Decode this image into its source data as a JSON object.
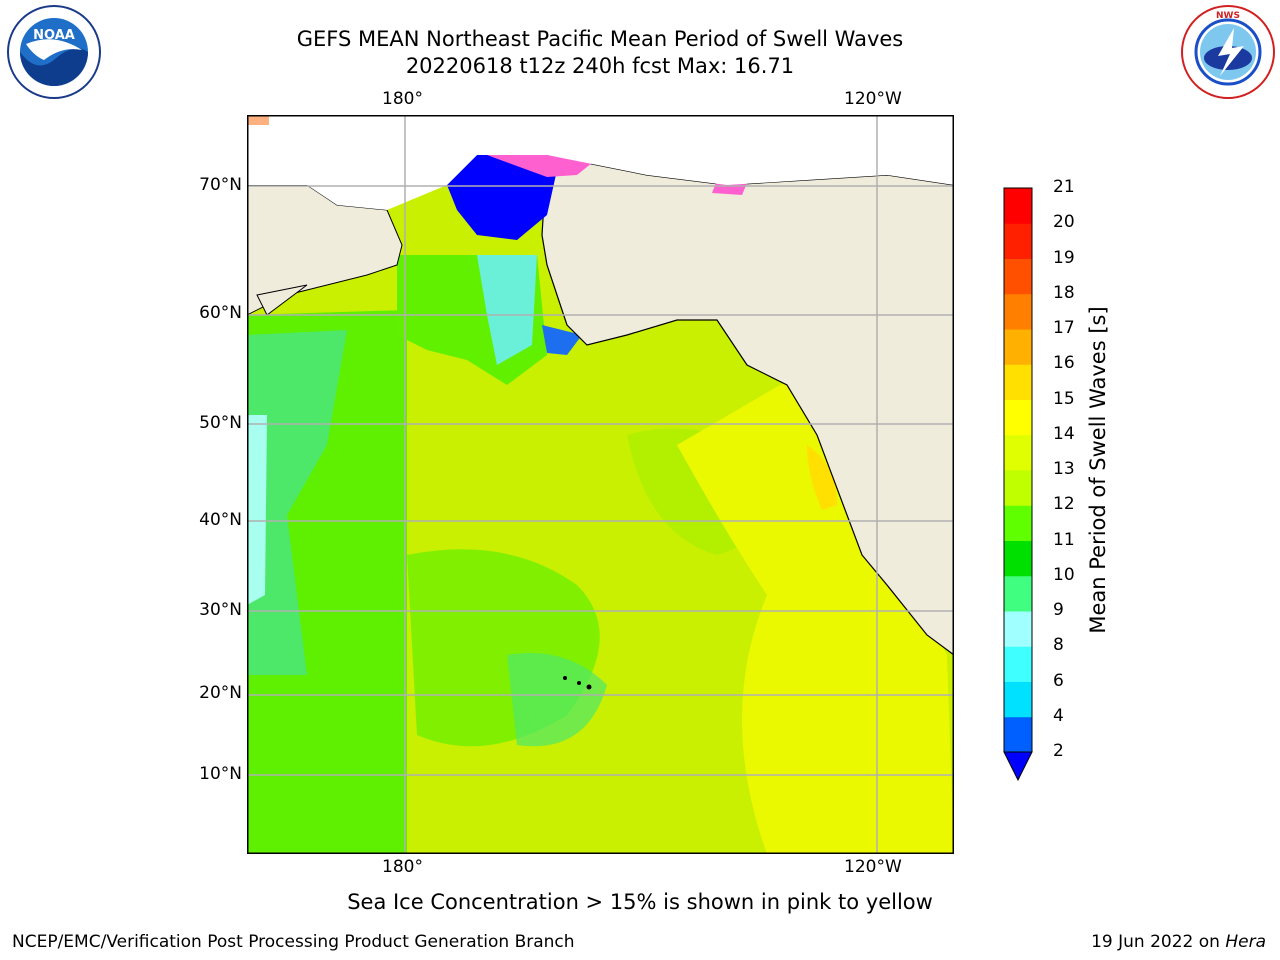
{
  "header": {
    "title_line1": "GEFS MEAN Northeast Pacific Mean Period of Swell Waves",
    "title_line2": "20220618 t12z 240h fcst   Max: 16.71"
  },
  "logos": {
    "noaa": {
      "name": "noaa-logo",
      "text": "NOAA",
      "ring_text": "NATIONAL OCEANIC AND ATMOSPHERIC ADMINISTRATION · U.S. DEPARTMENT OF COMMERCE"
    },
    "nws": {
      "name": "nws-logo",
      "ring_text": "NATIONAL WEATHER SERVICE"
    }
  },
  "map": {
    "lon_labels": {
      "left": "180°",
      "right": "120°W"
    },
    "lat_labels": [
      "70°N",
      "60°N",
      "50°N",
      "40°N",
      "30°N",
      "20°N",
      "10°N"
    ],
    "colors": {
      "land": "#efecdc",
      "grid": "#b0b0b0"
    }
  },
  "colorbar": {
    "title": "Mean Period of Swell Waves [s]",
    "ticks": [
      "2",
      "4",
      "6",
      "8",
      "9",
      "10",
      "11",
      "12",
      "13",
      "14",
      "15",
      "16",
      "17",
      "18",
      "19",
      "20",
      "21"
    ],
    "colors": [
      "#0060ff",
      "#00e0ff",
      "#40ffff",
      "#a0ffff",
      "#40ff80",
      "#00e000",
      "#60ff00",
      "#c0ff00",
      "#e0ff00",
      "#ffff00",
      "#ffe000",
      "#ffb000",
      "#ff8000",
      "#ff5000",
      "#ff2000",
      "#ff0000"
    ],
    "extend_color": "#0000ff"
  },
  "note": "Sea Ice Concentration > 15% is shown in pink to yellow",
  "footer": {
    "left": "NCEP/EMC/Verification Post Processing Product Generation Branch",
    "right_prefix": "19 Jun 2022 on ",
    "right_machine": "Hera"
  }
}
